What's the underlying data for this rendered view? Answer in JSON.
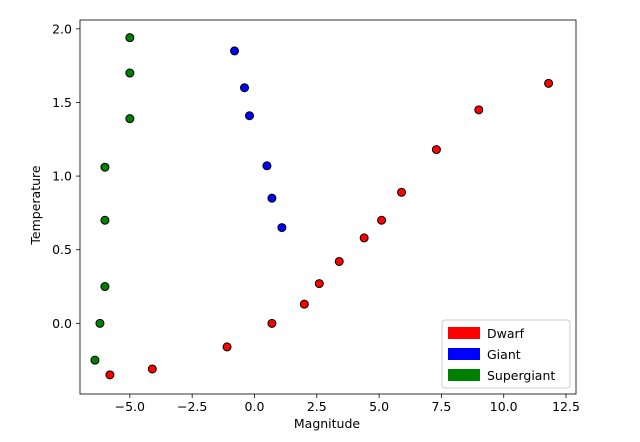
{
  "chart_data": {
    "type": "scatter",
    "title": "",
    "xlabel": "Magnitude",
    "ylabel": "Temperature",
    "xlim": [
      -7.0,
      12.9
    ],
    "ylim": [
      -0.48,
      2.06
    ],
    "xticks": [
      -5.0,
      -2.5,
      0.0,
      2.5,
      5.0,
      7.5,
      10.0,
      12.5
    ],
    "xtick_labels": [
      "−5.0",
      "−2.5",
      "0.0",
      "2.5",
      "5.0",
      "7.5",
      "10.0",
      "12.5"
    ],
    "yticks": [
      0.0,
      0.5,
      1.0,
      1.5,
      2.0
    ],
    "ytick_labels": [
      "0.0",
      "0.5",
      "1.0",
      "1.5",
      "2.0"
    ],
    "grid": false,
    "legend_position": "lower-right",
    "series": [
      {
        "name": "Dwarf",
        "color": "#ff0000",
        "points": [
          {
            "x": -5.8,
            "y": -0.35
          },
          {
            "x": -4.1,
            "y": -0.31
          },
          {
            "x": -1.1,
            "y": -0.16
          },
          {
            "x": 0.7,
            "y": 0.0
          },
          {
            "x": 2.0,
            "y": 0.13
          },
          {
            "x": 2.6,
            "y": 0.27
          },
          {
            "x": 3.4,
            "y": 0.42
          },
          {
            "x": 4.4,
            "y": 0.58
          },
          {
            "x": 5.1,
            "y": 0.7
          },
          {
            "x": 5.9,
            "y": 0.89
          },
          {
            "x": 7.3,
            "y": 1.18
          },
          {
            "x": 9.0,
            "y": 1.45
          },
          {
            "x": 11.8,
            "y": 1.63
          }
        ]
      },
      {
        "name": "Giant",
        "color": "#0000ff",
        "points": [
          {
            "x": -0.8,
            "y": 1.85
          },
          {
            "x": -0.4,
            "y": 1.6
          },
          {
            "x": -0.2,
            "y": 1.41
          },
          {
            "x": 0.5,
            "y": 1.07
          },
          {
            "x": 0.7,
            "y": 0.85
          },
          {
            "x": 1.1,
            "y": 0.65
          }
        ]
      },
      {
        "name": "Supergiant",
        "color": "#008000",
        "points": [
          {
            "x": -5.0,
            "y": 1.94
          },
          {
            "x": -5.0,
            "y": 1.7
          },
          {
            "x": -5.0,
            "y": 1.39
          },
          {
            "x": -6.0,
            "y": 1.06
          },
          {
            "x": -6.0,
            "y": 0.7
          },
          {
            "x": -6.0,
            "y": 0.25
          },
          {
            "x": -6.2,
            "y": 0.0
          },
          {
            "x": -6.4,
            "y": -0.25
          }
        ]
      }
    ]
  }
}
